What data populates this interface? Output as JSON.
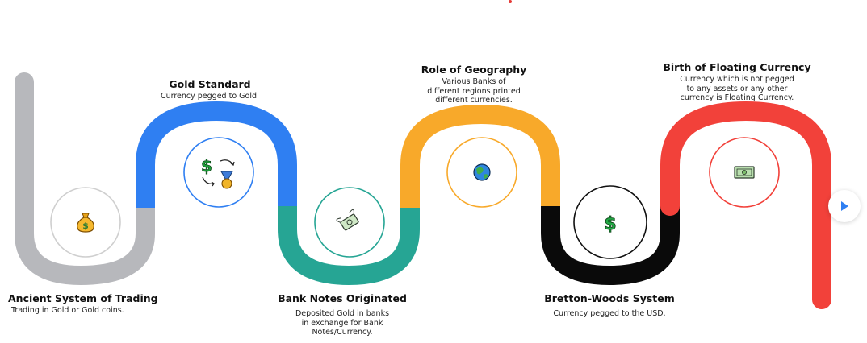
{
  "colors": {
    "gray": "#b7b8bc",
    "blue": "#2f7ff2",
    "teal": "#26a594",
    "orange": "#f8a92a",
    "black": "#0a0a0a",
    "red": "#f2413a",
    "play": "#2f7ff2"
  },
  "milestones": [
    {
      "title": "Ancient System of Trading",
      "desc": [
        "Trading in Gold or Gold coins."
      ],
      "icon": "money-bag-icon",
      "color": "#b7b8bc"
    },
    {
      "title": "Gold Standard",
      "desc": [
        "Currency pegged to Gold."
      ],
      "icon": "dollar-medal-exchange-icon",
      "color": "#2f7ff2"
    },
    {
      "title": "Bank Notes Originated",
      "desc": [
        "Deposited Gold in banks",
        "in exchange for Bank",
        "Notes/Currency."
      ],
      "icon": "flying-money-icon",
      "color": "#26a594"
    },
    {
      "title": "Role of Geography",
      "desc": [
        "Various Banks of",
        "different regions printed",
        "different currencies."
      ],
      "icon": "globe-icon",
      "color": "#f8a92a"
    },
    {
      "title": "Bretton-Woods System",
      "desc": [
        "Currency pegged to the USD."
      ],
      "icon": "dollar-sign-icon",
      "color": "#0a0a0a"
    },
    {
      "title": "Birth of Floating Currency",
      "desc": [
        "Currency which is not pegged",
        "to any assets or any other",
        "currency is Floating Currency."
      ],
      "icon": "banknote-icon",
      "color": "#f2413a"
    }
  ]
}
